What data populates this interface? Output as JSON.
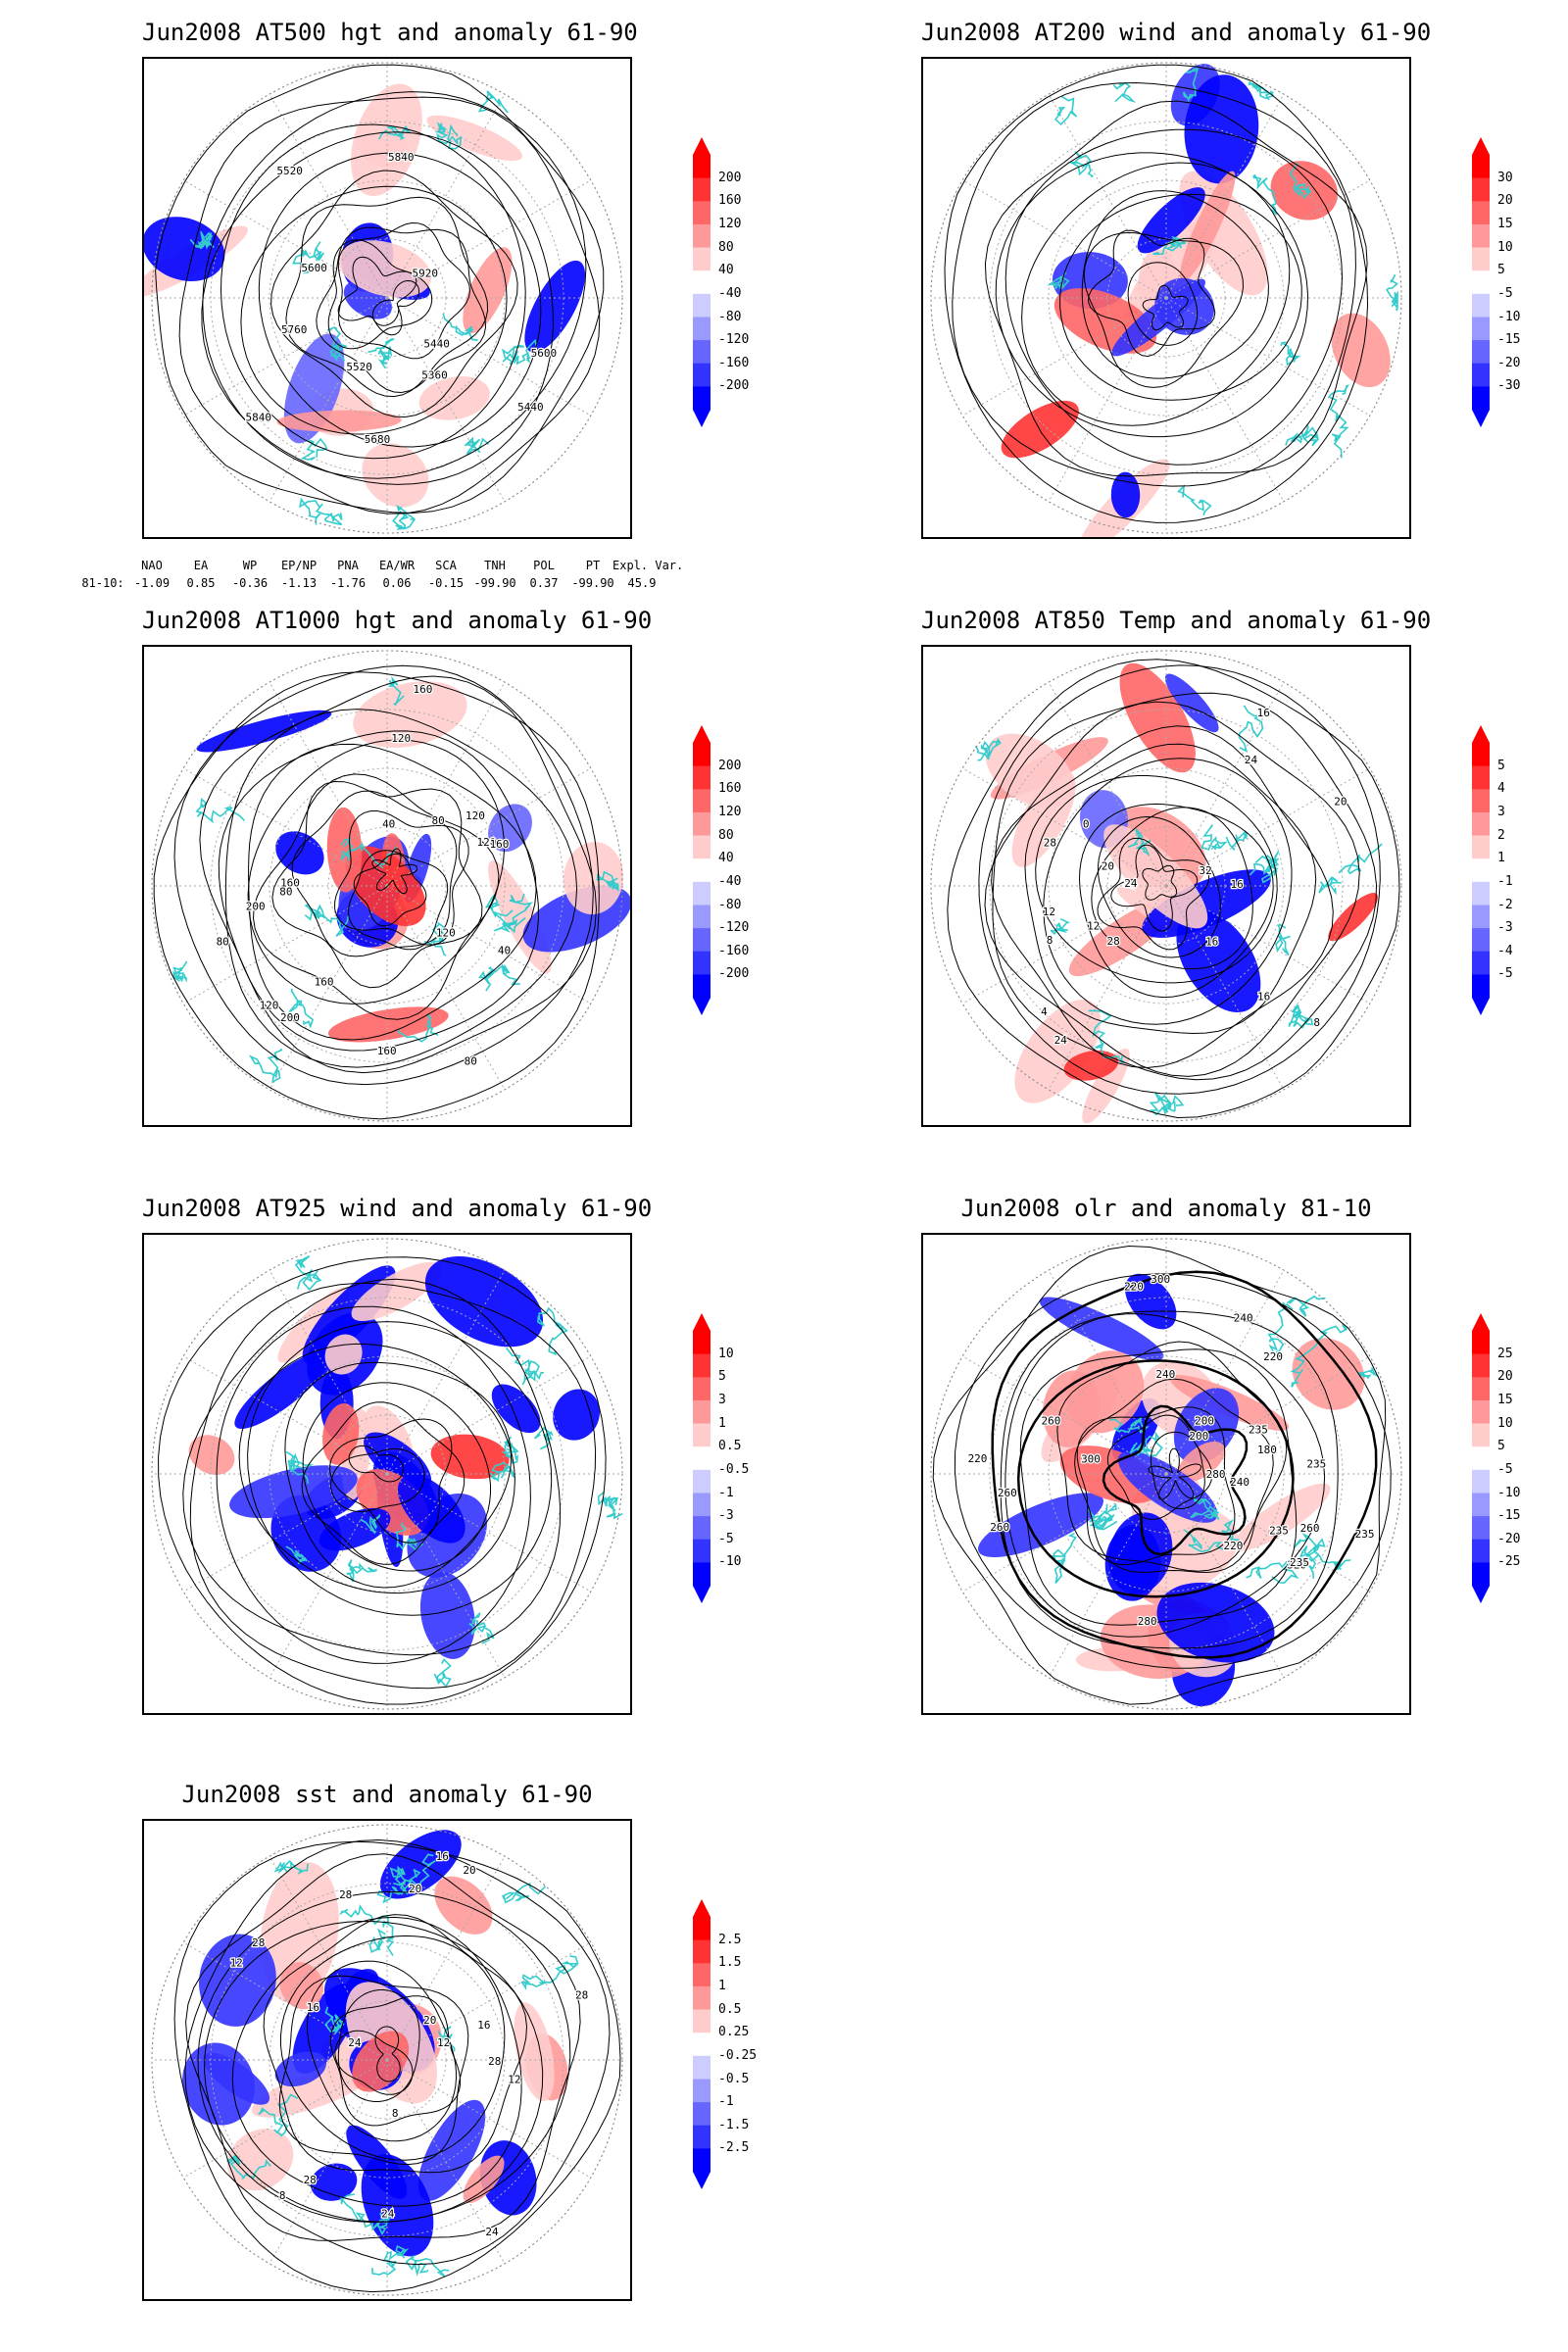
{
  "panels": [
    {
      "id": "p1",
      "title": "Jun2008 AT500 hgt and anomaly 61-90",
      "colorbar": [
        "200",
        "160",
        "120",
        "80",
        "40",
        "-40",
        "-80",
        "-120",
        "-160",
        "-200"
      ],
      "contour_labels": [
        "5600",
        "5520",
        "5440",
        "5360",
        "5440",
        "5520",
        "5600",
        "5680",
        "5760",
        "5840",
        "5920",
        "5840"
      ]
    },
    {
      "id": "p2",
      "title": "Jun2008 AT200 wind and anomaly 61-90",
      "colorbar": [
        "30",
        "20",
        "15",
        "10",
        "5",
        "-5",
        "-10",
        "-15",
        "-20",
        "-30"
      ],
      "contour_labels": []
    },
    {
      "id": "p3",
      "title": "Jun2008 AT1000 hgt and anomaly 61-90",
      "colorbar": [
        "200",
        "160",
        "120",
        "80",
        "40",
        "-40",
        "-80",
        "-120",
        "-160",
        "-200"
      ],
      "contour_labels": [
        "80",
        "120",
        "160",
        "160",
        "120",
        "200",
        "160",
        "120",
        "80",
        "40",
        "120",
        "160",
        "200",
        "160",
        "120",
        "80",
        "40",
        "80"
      ]
    },
    {
      "id": "p4",
      "title": "Jun2008 AT850 Temp and anomaly 61-90",
      "colorbar": [
        "5",
        "4",
        "3",
        "2",
        "1",
        "-1",
        "-2",
        "-3",
        "-4",
        "-5"
      ],
      "contour_labels": [
        "16",
        "16",
        "12",
        "8",
        "24",
        "20",
        "24",
        "28",
        "32",
        "16",
        "24",
        "28",
        "20",
        "4",
        "0",
        "12",
        "8",
        "16"
      ]
    },
    {
      "id": "p5",
      "title": "Jun2008 AT925 wind and anomaly 61-90",
      "colorbar": [
        "10",
        "5",
        "3",
        "1",
        "0.5",
        "-0.5",
        "-1",
        "-3",
        "-5",
        "-10"
      ],
      "contour_labels": []
    },
    {
      "id": "p6",
      "title": "Jun2008 olr and anomaly 81-10",
      "colorbar": [
        "25",
        "20",
        "15",
        "10",
        "5",
        "-5",
        "-10",
        "-15",
        "-20",
        "-25"
      ],
      "contour_labels": [
        "260",
        "240",
        "235",
        "220",
        "200",
        "235",
        "220",
        "240",
        "260",
        "280",
        "300",
        "320",
        "235",
        "220",
        "200",
        "180",
        "260",
        "280",
        "235",
        "300",
        "240",
        "220",
        "260",
        "235"
      ]
    },
    {
      "id": "p7",
      "title": "Jun2008 sst and anomaly 61-90",
      "colorbar": [
        "2.5",
        "1.5",
        "1",
        "0.5",
        "0.25",
        "-0.25",
        "-0.5",
        "-1",
        "-1.5",
        "-2.5"
      ],
      "contour_labels": [
        "28",
        "28",
        "24",
        "20",
        "16",
        "12",
        "8",
        "20",
        "16",
        "12",
        "24",
        "28",
        "16",
        "12",
        "8",
        "20",
        "24",
        "28",
        "28"
      ]
    }
  ],
  "indices": {
    "headers": [
      "NAO",
      "EA",
      "WP",
      "EP/NP",
      "PNA",
      "EA/WR",
      "SCA",
      "TNH",
      "POL",
      "PT",
      "Expl. Var."
    ],
    "row_label": "81-10:",
    "values": [
      "-1.09",
      "0.85",
      "-0.36",
      "-1.13",
      "-1.76",
      "0.06",
      "-0.15",
      "-99.90",
      "0.37",
      "-99.90",
      "45.9"
    ]
  },
  "colors": {
    "positive": [
      "#ff0000",
      "#ff3333",
      "#ff6666",
      "#ff9999",
      "#ffcccc"
    ],
    "negative": [
      "#ccccff",
      "#9999ff",
      "#6666ff",
      "#3333ff",
      "#0000ff"
    ],
    "coastline": "#33cccc",
    "contour": "#000000",
    "grid": "#aaaaaa"
  }
}
